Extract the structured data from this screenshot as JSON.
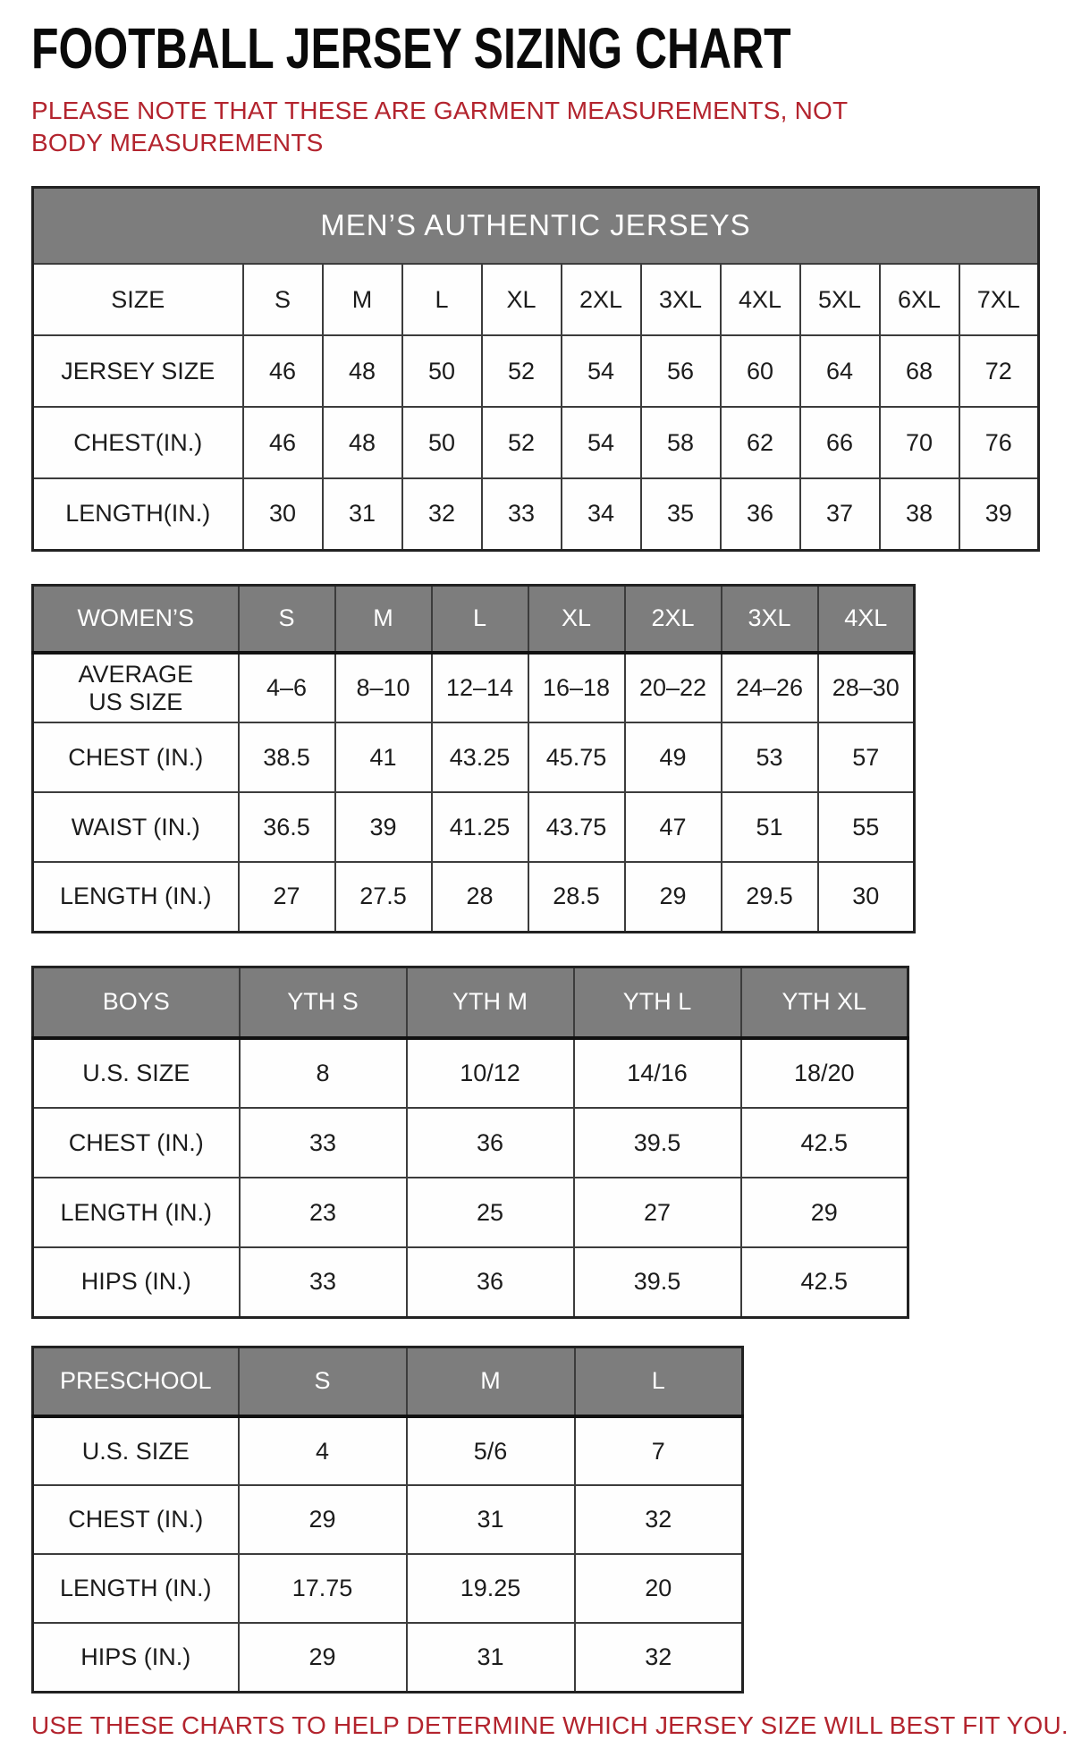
{
  "page": {
    "title": "FOOTBALL JERSEY SIZING CHART",
    "note": "PLEASE NOTE THAT THESE ARE GARMENT MEASUREMENTS, NOT BODY MEASUREMENTS",
    "footer": "USE THESE CHARTS TO HELP DETERMINE WHICH JERSEY SIZE WILL BEST FIT YOU."
  },
  "colors": {
    "accent_red": "#b3242e",
    "header_gray": "#7d7d7d",
    "text_black": "#1c1c1c"
  },
  "tables": [
    {
      "name": "mens",
      "banner": "MEN’S AUTHENTIC JERSEYS",
      "columns": [
        "SIZE",
        "S",
        "M",
        "L",
        "XL",
        "2XL",
        "3XL",
        "4XL",
        "5XL",
        "6XL",
        "7XL"
      ],
      "rows": [
        [
          "JERSEY SIZE",
          "46",
          "48",
          "50",
          "52",
          "54",
          "56",
          "60",
          "64",
          "68",
          "72"
        ],
        [
          "CHEST(IN.)",
          "46",
          "48",
          "50",
          "52",
          "54",
          "58",
          "62",
          "66",
          "70",
          "76"
        ],
        [
          "LENGTH(IN.)",
          "30",
          "31",
          "32",
          "33",
          "34",
          "35",
          "36",
          "37",
          "38",
          "39"
        ]
      ]
    },
    {
      "name": "womens",
      "columns": [
        "WOMEN’S",
        "S",
        "M",
        "L",
        "XL",
        "2XL",
        "3XL",
        "4XL"
      ],
      "rows": [
        [
          "AVERAGE\nUS SIZE",
          "4–6",
          "8–10",
          "12–14",
          "16–18",
          "20–22",
          "24–26",
          "28–30"
        ],
        [
          "CHEST (IN.)",
          "38.5",
          "41",
          "43.25",
          "45.75",
          "49",
          "53",
          "57"
        ],
        [
          "WAIST (IN.)",
          "36.5",
          "39",
          "41.25",
          "43.75",
          "47",
          "51",
          "55"
        ],
        [
          "LENGTH (IN.)",
          "27",
          "27.5",
          "28",
          "28.5",
          "29",
          "29.5",
          "30"
        ]
      ]
    },
    {
      "name": "boys",
      "columns": [
        "BOYS",
        "YTH S",
        "YTH M",
        "YTH L",
        "YTH XL"
      ],
      "rows": [
        [
          "U.S. SIZE",
          "8",
          "10/12",
          "14/16",
          "18/20"
        ],
        [
          "CHEST (IN.)",
          "33",
          "36",
          "39.5",
          "42.5"
        ],
        [
          "LENGTH (IN.)",
          "23",
          "25",
          "27",
          "29"
        ],
        [
          "HIPS (IN.)",
          "33",
          "36",
          "39.5",
          "42.5"
        ]
      ]
    },
    {
      "name": "preschool",
      "columns": [
        "PRESCHOOL",
        "S",
        "M",
        "L"
      ],
      "rows": [
        [
          "U.S. SIZE",
          "4",
          "5/6",
          "7"
        ],
        [
          "CHEST (IN.)",
          "29",
          "31",
          "32"
        ],
        [
          "LENGTH (IN.)",
          "17.75",
          "19.25",
          "20"
        ],
        [
          "HIPS (IN.)",
          "29",
          "31",
          "32"
        ]
      ]
    }
  ]
}
